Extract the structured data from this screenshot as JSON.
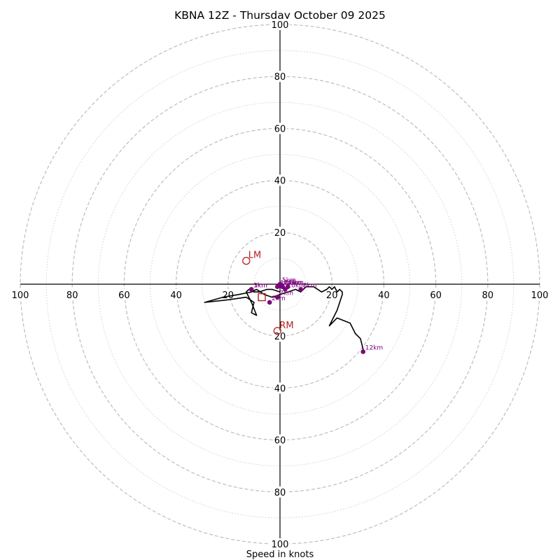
{
  "chart_data": {
    "type": "hodograph",
    "title": "KBNA 12Z - Thursday October 09 2025",
    "xlabel": "Speed in knots",
    "range": [
      -100,
      100
    ],
    "ring_major": [
      20,
      40,
      60,
      80,
      100
    ],
    "ring_minor": [
      10,
      30,
      50,
      70,
      90
    ],
    "ticks": [
      20,
      40,
      60,
      80,
      100
    ],
    "hodograph": [
      [
        0,
        -3
      ],
      [
        -3,
        -2
      ],
      [
        -5,
        -2
      ],
      [
        -8,
        -3
      ],
      [
        -10,
        -3
      ],
      [
        -12,
        -2
      ],
      [
        -13,
        -3
      ],
      [
        -11,
        -7
      ],
      [
        -9,
        -12
      ],
      [
        -11,
        -11
      ],
      [
        -10,
        -7
      ],
      [
        -13,
        -5
      ],
      [
        -20,
        -6
      ],
      [
        -29,
        -7
      ],
      [
        -22,
        -5
      ],
      [
        -16,
        -4
      ],
      [
        -11,
        -3
      ],
      [
        -9,
        -2
      ],
      [
        -6,
        -4
      ],
      [
        -3,
        -5
      ],
      [
        0,
        -4
      ],
      [
        3,
        -3
      ],
      [
        6,
        -2
      ],
      [
        8,
        -3
      ],
      [
        10,
        -1
      ],
      [
        13,
        -1
      ],
      [
        16,
        -3
      ],
      [
        18,
        -2
      ],
      [
        19,
        -1
      ],
      [
        20,
        -2
      ],
      [
        21,
        -1
      ],
      [
        22,
        -3
      ],
      [
        23,
        -2
      ],
      [
        24,
        -3
      ],
      [
        24,
        -4
      ],
      [
        22,
        -10
      ],
      [
        19,
        -16
      ],
      [
        22,
        -13
      ],
      [
        27,
        -15
      ],
      [
        29,
        -19
      ],
      [
        31,
        -21
      ],
      [
        32,
        -25
      ],
      [
        32,
        -26
      ]
    ],
    "height_markers": [
      {
        "label": "1km",
        "u": -11,
        "v": -2
      },
      {
        "label": "2km",
        "u": -4,
        "v": -7
      },
      {
        "label": "3km",
        "u": -11,
        "v": -2
      },
      {
        "label": "4km",
        "u": -1,
        "v": -1
      },
      {
        "label": "5km",
        "u": 0,
        "v": 0
      },
      {
        "label": "6km",
        "u": 1,
        "v": -1
      },
      {
        "label": "7km",
        "u": -1,
        "v": -5
      },
      {
        "label": "8km",
        "u": 8,
        "v": -2
      },
      {
        "label": "9km",
        "u": 3,
        "v": -1
      },
      {
        "label": "10km",
        "u": 2,
        "v": -2
      },
      {
        "label": "11km",
        "u": 1,
        "v": -1
      },
      {
        "label": "12km",
        "u": 32,
        "v": -26
      }
    ],
    "storm_motion": [
      {
        "label": "LM",
        "u": -13,
        "v": 9
      },
      {
        "label": "RM",
        "u": -1,
        "v": -18
      }
    ],
    "mean_wind": {
      "u": -7,
      "v": -5
    },
    "colors": {
      "hodograph": "#000000",
      "markers": "#800080",
      "storm_motion": "#b22222"
    }
  }
}
